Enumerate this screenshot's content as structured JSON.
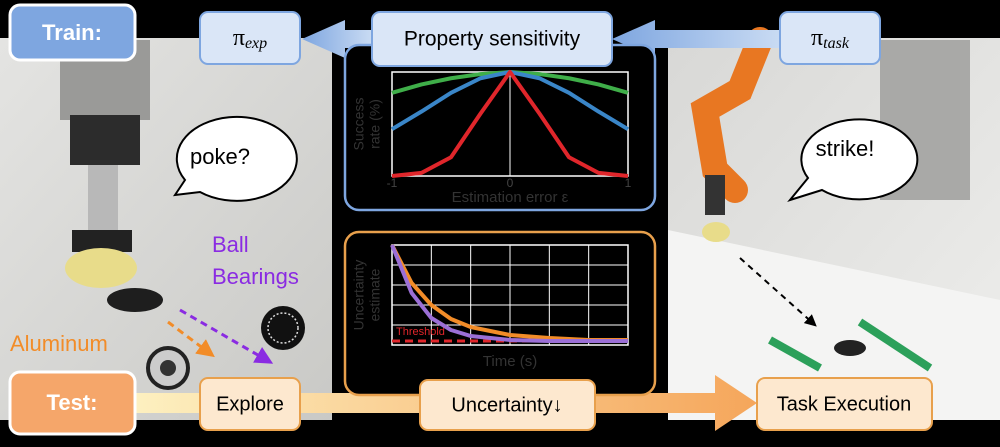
{
  "labels": {
    "train": "Train:",
    "test": "Test:"
  },
  "top_flow": {
    "pi_exp": {
      "symbol": "π",
      "subscript": "exp"
    },
    "property": "Property sensitivity",
    "pi_task": {
      "symbol": "π",
      "subscript": "task"
    }
  },
  "bottom_flow": {
    "explore": "Explore",
    "uncertainty": "Uncertainty↓",
    "task": "Task Execution"
  },
  "bubbles": {
    "left": "poke?",
    "right": "strike!"
  },
  "materials": {
    "ball_bearings": [
      "Ball",
      "Bearings"
    ],
    "aluminum": "Aluminum"
  },
  "sensitivity_plot": {
    "x_label": "Estimation error ε",
    "y_label": [
      "Success",
      "rate (%)"
    ],
    "xlim": [
      -1,
      1
    ],
    "ylim": [
      0,
      100
    ],
    "xticks": [
      -1,
      0,
      1
    ],
    "x": [
      -1,
      -0.75,
      -0.5,
      -0.25,
      0,
      0.25,
      0.5,
      0.75,
      1
    ],
    "series": [
      {
        "color": "#3fae49",
        "values": [
          80,
          88,
          94,
          98,
          100,
          98,
          94,
          88,
          80
        ]
      },
      {
        "color": "#3a86c8",
        "values": [
          45,
          62,
          80,
          94,
          100,
          94,
          80,
          62,
          45
        ]
      },
      {
        "color": "#e0262b",
        "values": [
          0,
          3,
          18,
          60,
          100,
          60,
          18,
          3,
          0
        ]
      }
    ]
  },
  "uncertainty_plot": {
    "x_label": "Time (s)",
    "y_label": [
      "Uncertainty",
      "estimate"
    ],
    "threshold_label": "Threshold",
    "threshold": 0.04,
    "xlim": [
      0,
      6
    ],
    "ylim": [
      0,
      1
    ],
    "x": [
      0,
      0.5,
      1,
      1.5,
      2,
      3,
      4,
      5,
      6
    ],
    "series": [
      {
        "color": "#f28c28",
        "values": [
          1,
          0.62,
          0.4,
          0.26,
          0.18,
          0.1,
          0.07,
          0.05,
          0.05
        ]
      },
      {
        "color": "#9b6fd6",
        "values": [
          1,
          0.52,
          0.27,
          0.15,
          0.09,
          0.05,
          0.04,
          0.04,
          0.04
        ]
      }
    ]
  }
}
